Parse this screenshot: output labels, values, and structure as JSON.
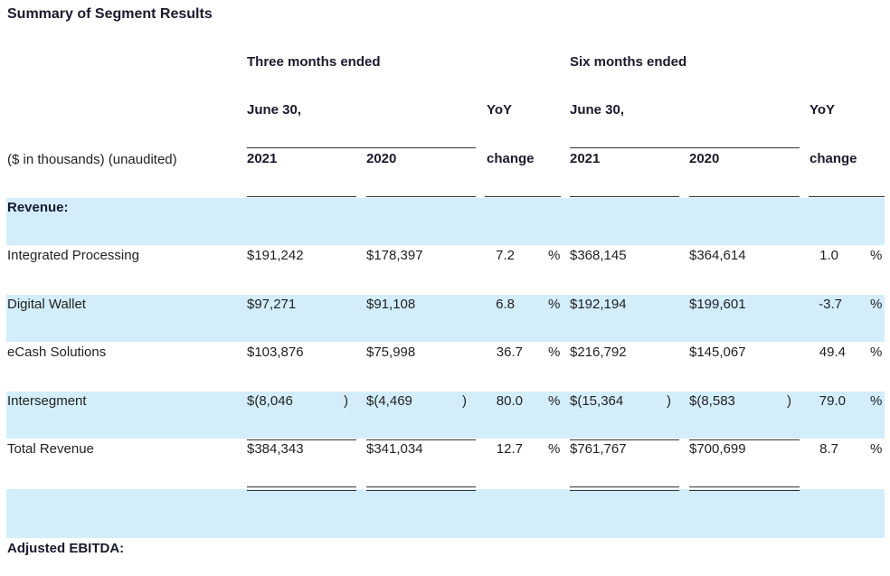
{
  "title": "Summary of Segment Results",
  "header": {
    "three_months": "Three months ended",
    "six_months": "Six months ended",
    "june30_a": "June 30,",
    "june30_b": "June 30,",
    "yoy_a": "YoY",
    "yoy_b": "YoY",
    "units": "($ in thousands) (unaudited)",
    "y2021_a": "2021",
    "y2020_a": "2020",
    "change_a": "change",
    "y2021_b": "2021",
    "y2020_b": "2020",
    "change_b": "change"
  },
  "sections": {
    "revenue": "Revenue:",
    "adjusted_ebitda": "Adjusted EBITDA:"
  },
  "rows": [
    {
      "label": "Integrated Processing",
      "q2021": "$191,242",
      "q2020": "$178,397",
      "qyoy": "7.2",
      "h2021": "$368,145",
      "h2020": "$364,614",
      "hyoy": "1.0"
    },
    {
      "label": "Digital Wallet",
      "q2021": "$97,271",
      "q2020": "$91,108",
      "qyoy": "6.8",
      "h2021": "$192,194",
      "h2020": "$199,601",
      "hyoy": "-3.7"
    },
    {
      "label": "eCash Solutions",
      "q2021": "$103,876",
      "q2020": "$75,998",
      "qyoy": "36.7",
      "h2021": "$216,792",
      "h2020": "$145,067",
      "hyoy": "49.4"
    },
    {
      "label": "Intersegment",
      "q2021": "$(8,046",
      "q2020": "$(4,469",
      "qyoy": "80.0",
      "h2021": "$(15,364",
      "h2020": "$(8,583",
      "hyoy": "79.0"
    },
    {
      "label": "Total Revenue",
      "q2021": "$384,343",
      "q2020": "$341,034",
      "qyoy": "12.7",
      "h2021": "$761,767",
      "h2020": "$700,699",
      "hyoy": "8.7"
    }
  ],
  "symbols": {
    "percent": "%",
    "close_paren": ")"
  }
}
